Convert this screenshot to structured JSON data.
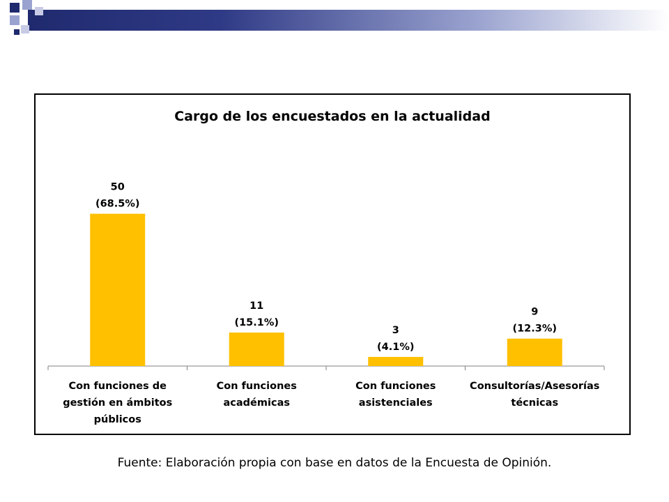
{
  "chart_data": {
    "type": "bar",
    "title": "Cargo  de los encuestados en la actualidad",
    "categories": [
      [
        "Con funciones de",
        "gestión en ámbitos",
        "públicos"
      ],
      [
        "Con funciones",
        "académicas"
      ],
      [
        "Con funciones",
        "asistenciales"
      ],
      [
        "Consultorías/Asesorías",
        "técnicas"
      ]
    ],
    "values": [
      50,
      11,
      3,
      9
    ],
    "value_labels": [
      "50",
      "11",
      "3",
      "9"
    ],
    "percent_labels": [
      "(68.5%)",
      "(15.1%)",
      "(4.1%)",
      "(12.3%)"
    ],
    "ylim": [
      0,
      57
    ],
    "bar_color": "#FFC000",
    "grid": false,
    "legend": "none"
  },
  "footer": {
    "source": "Fuente: Elaboración propia con base en datos de la Encuesta de Opinión."
  },
  "colors": {
    "header_dark": "#1f2a6e",
    "header_light": "#9aa3cf"
  }
}
